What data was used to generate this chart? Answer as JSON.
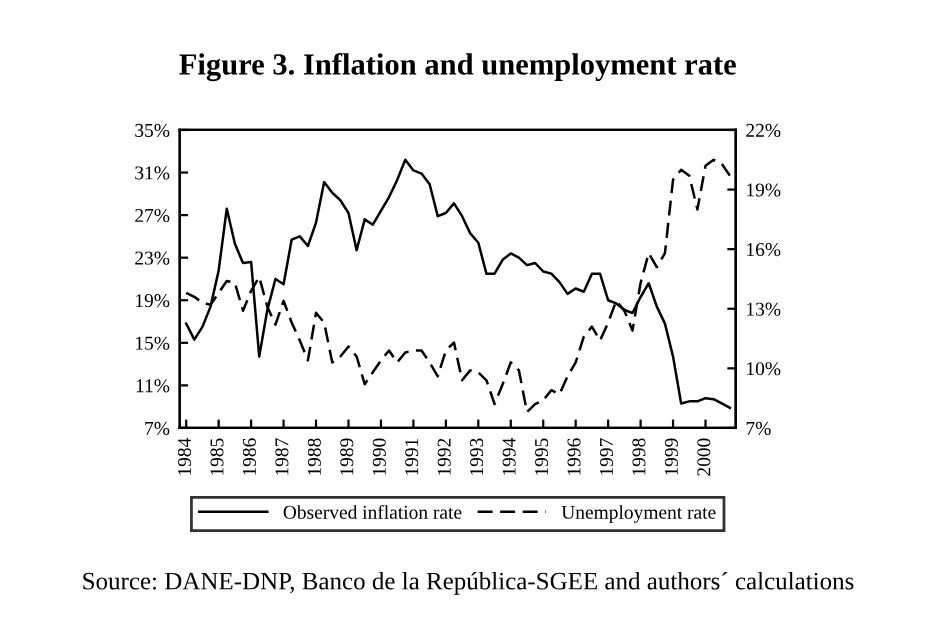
{
  "chart_data": {
    "type": "line",
    "title": "Figure 3. Inflation and unemployment rate",
    "annotations": [
      "Source: DANE-DNP, Banco de la República-SGEE and authors´ calculations"
    ],
    "xlim": [
      1983.8,
      2000.93
    ],
    "xticks": [
      {
        "value": 1984,
        "label": "1984"
      },
      {
        "value": 1985,
        "label": "1985"
      },
      {
        "value": 1986,
        "label": "1986"
      },
      {
        "value": 1987,
        "label": "1987"
      },
      {
        "value": 1988,
        "label": "1988"
      },
      {
        "value": 1989,
        "label": "1989"
      },
      {
        "value": 1990,
        "label": "1990"
      },
      {
        "value": 1991,
        "label": "1991"
      },
      {
        "value": 1992,
        "label": "1992"
      },
      {
        "value": 1993,
        "label": "1993"
      },
      {
        "value": 1994,
        "label": "1994"
      },
      {
        "value": 1995,
        "label": "1995"
      },
      {
        "value": 1996,
        "label": "1996"
      },
      {
        "value": 1997,
        "label": "1997"
      },
      {
        "value": 1998,
        "label": "1998"
      },
      {
        "value": 1999,
        "label": "1999"
      },
      {
        "value": 2000,
        "label": "2000"
      }
    ],
    "ylim": [
      7,
      35
    ],
    "yticks": [
      {
        "value": 7,
        "label": "7%"
      },
      {
        "value": 11,
        "label": "11%"
      },
      {
        "value": 15,
        "label": "15%"
      },
      {
        "value": 19,
        "label": "19%"
      },
      {
        "value": 23,
        "label": "23%"
      },
      {
        "value": 27,
        "label": "27%"
      },
      {
        "value": 31,
        "label": "31%"
      },
      {
        "value": 35,
        "label": "35%"
      }
    ],
    "y2lim": [
      7,
      22
    ],
    "y2ticks": [
      {
        "value": 7,
        "label": "7%"
      },
      {
        "value": 10,
        "label": "10%"
      },
      {
        "value": 13,
        "label": "13%"
      },
      {
        "value": 16,
        "label": "16%"
      },
      {
        "value": 19,
        "label": "19%"
      },
      {
        "value": 22,
        "label": "22%"
      }
    ],
    "x": [
      1984,
      1984.25,
      1984.5,
      1984.75,
      1985,
      1985.25,
      1985.5,
      1985.75,
      1986,
      1986.25,
      1986.5,
      1986.75,
      1987,
      1987.25,
      1987.5,
      1987.75,
      1988,
      1988.25,
      1988.5,
      1988.75,
      1989,
      1989.25,
      1989.5,
      1989.75,
      1990,
      1990.25,
      1990.5,
      1990.75,
      1991,
      1991.25,
      1991.5,
      1991.75,
      1992,
      1992.25,
      1992.5,
      1992.75,
      1993,
      1993.25,
      1993.5,
      1993.75,
      1994,
      1994.25,
      1994.5,
      1994.75,
      1995,
      1995.25,
      1995.5,
      1995.75,
      1996,
      1996.25,
      1996.5,
      1996.75,
      1997,
      1997.25,
      1997.5,
      1997.75,
      1998,
      1998.25,
      1998.5,
      1998.75,
      1999,
      1999.25,
      1999.5,
      1999.75,
      2000,
      2000.25,
      2000.5,
      2000.75
    ],
    "series": [
      {
        "name": "Observed inflation rate",
        "color": "#000000",
        "line_style": "solid",
        "values": [
          16.8,
          15.3,
          16.5,
          18.4,
          21.8,
          27.6,
          24.3,
          22.5,
          22.6,
          13.7,
          18.1,
          21.0,
          20.5,
          24.7,
          25.0,
          24.1,
          26.3,
          30.1,
          29.1,
          28.4,
          27.2,
          23.7,
          26.6,
          26.1,
          27.4,
          28.7,
          30.3,
          32.2,
          31.2,
          30.9,
          29.9,
          26.9,
          27.2,
          28.1,
          26.9,
          25.3,
          24.4,
          21.5,
          21.5,
          22.8,
          23.4,
          23.0,
          22.3,
          22.5,
          21.7,
          21.5,
          20.7,
          19.6,
          20.1,
          19.8,
          21.5,
          21.5,
          19.0,
          18.7,
          18.1,
          17.8,
          19.3,
          20.6,
          18.4,
          16.8,
          13.7,
          9.3,
          9.5,
          9.5,
          9.8,
          9.7,
          9.3,
          8.9
        ]
      },
      {
        "name": "Unemployment rate",
        "color": "#000000",
        "line_style": "dashed",
        "axis": "y2",
        "values": [
          13.8,
          13.6,
          13.3,
          13.2,
          13.8,
          14.4,
          14.3,
          12.9,
          13.9,
          14.6,
          13.1,
          12.2,
          13.4,
          12.3,
          11.4,
          10.4,
          12.8,
          12.3,
          10.3,
          10.6,
          11.1,
          10.6,
          9.2,
          9.8,
          10.4,
          10.9,
          10.3,
          10.8,
          10.9,
          10.9,
          10.3,
          9.6,
          10.9,
          11.3,
          9.4,
          9.9,
          9.8,
          9.4,
          8.2,
          9.2,
          10.3,
          9.9,
          7.8,
          8.2,
          8.4,
          8.9,
          8.7,
          9.6,
          10.3,
          11.6,
          12.1,
          11.4,
          12.3,
          13.4,
          12.9,
          11.9,
          14.3,
          15.8,
          15.1,
          15.8,
          19.5,
          20.0,
          19.7,
          18.0,
          20.2,
          20.5,
          20.3,
          19.7
        ]
      }
    ],
    "legend": "bottom",
    "grid": false
  }
}
